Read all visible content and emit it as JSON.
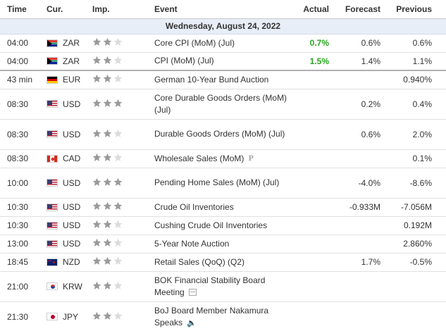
{
  "columns": {
    "time": "Time",
    "currency": "Cur.",
    "importance": "Imp.",
    "event": "Event",
    "actual": "Actual",
    "forecast": "Forecast",
    "previous": "Previous"
  },
  "date_header": "Wednesday, August 24, 2022",
  "colors": {
    "star_active": "#9a9a9a",
    "star_inactive": "#dcdcdc",
    "actual_better": "#27a51c",
    "date_row_bg": "#e8eef7"
  },
  "events": [
    {
      "time": "04:00",
      "currency": "ZAR",
      "flag": "za-flag-icon",
      "stars": 2,
      "event": "Core CPI (MoM) (Jul)",
      "actual": "0.7%",
      "actual_status": "better",
      "forecast": "0.6%",
      "previous": "0.6%",
      "tall": false,
      "icon": ""
    },
    {
      "time": "04:00",
      "currency": "ZAR",
      "flag": "za-flag-icon",
      "stars": 2,
      "event": "CPI (MoM) (Jul)",
      "actual": "1.5%",
      "actual_status": "better",
      "forecast": "1.4%",
      "previous": "1.1%",
      "tall": false,
      "icon": ""
    },
    {
      "time": "43 min",
      "currency": "EUR",
      "flag": "de-flag-icon",
      "stars": 2,
      "event": "German 10-Year Bund Auction",
      "actual": "",
      "actual_status": "",
      "forecast": "",
      "previous": "0.940%",
      "tall": false,
      "icon": "",
      "separator": true
    },
    {
      "time": "08:30",
      "currency": "USD",
      "flag": "us-flag-icon",
      "stars": 3,
      "event": "Core Durable Goods Orders (MoM) (Jul)",
      "actual": "",
      "actual_status": "",
      "forecast": "0.2%",
      "previous": "0.4%",
      "tall": true,
      "icon": ""
    },
    {
      "time": "08:30",
      "currency": "USD",
      "flag": "us-flag-icon",
      "stars": 2,
      "event": "Durable Goods Orders (MoM) (Jul)",
      "actual": "",
      "actual_status": "",
      "forecast": "0.6%",
      "previous": "2.0%",
      "tall": true,
      "icon": ""
    },
    {
      "time": "08:30",
      "currency": "CAD",
      "flag": "ca-flag-icon",
      "stars": 2,
      "event": "Wholesale Sales (MoM)",
      "actual": "",
      "actual_status": "",
      "forecast": "",
      "previous": "0.1%",
      "tall": false,
      "icon": "preliminary-icon"
    },
    {
      "time": "10:00",
      "currency": "USD",
      "flag": "us-flag-icon",
      "stars": 3,
      "event": "Pending Home Sales (MoM) (Jul)",
      "actual": "",
      "actual_status": "",
      "forecast": "-4.0%",
      "previous": "-8.6%",
      "tall": true,
      "icon": ""
    },
    {
      "time": "10:30",
      "currency": "USD",
      "flag": "us-flag-icon",
      "stars": 3,
      "event": "Crude Oil Inventories",
      "actual": "",
      "actual_status": "",
      "forecast": "-0.933M",
      "previous": "-7.056M",
      "tall": false,
      "icon": ""
    },
    {
      "time": "10:30",
      "currency": "USD",
      "flag": "us-flag-icon",
      "stars": 2,
      "event": "Cushing Crude Oil Inventories",
      "actual": "",
      "actual_status": "",
      "forecast": "",
      "previous": "0.192M",
      "tall": false,
      "icon": ""
    },
    {
      "time": "13:00",
      "currency": "USD",
      "flag": "us-flag-icon",
      "stars": 2,
      "event": "5-Year Note Auction",
      "actual": "",
      "actual_status": "",
      "forecast": "",
      "previous": "2.860%",
      "tall": false,
      "icon": ""
    },
    {
      "time": "18:45",
      "currency": "NZD",
      "flag": "nz-flag-icon",
      "stars": 2,
      "event": "Retail Sales (QoQ) (Q2)",
      "actual": "",
      "actual_status": "",
      "forecast": "1.7%",
      "previous": "-0.5%",
      "tall": false,
      "icon": ""
    },
    {
      "time": "21:00",
      "currency": "KRW",
      "flag": "kr-flag-icon",
      "stars": 2,
      "event": "BOK Financial Stability Board Meeting",
      "actual": "",
      "actual_status": "",
      "forecast": "",
      "previous": "",
      "tall": true,
      "icon": "report-icon"
    },
    {
      "time": "21:30",
      "currency": "JPY",
      "flag": "jp-flag-icon",
      "stars": 2,
      "event": "BoJ Board Member Nakamura Speaks",
      "actual": "",
      "actual_status": "",
      "forecast": "",
      "previous": "",
      "tall": true,
      "icon": "speaker-icon"
    }
  ]
}
